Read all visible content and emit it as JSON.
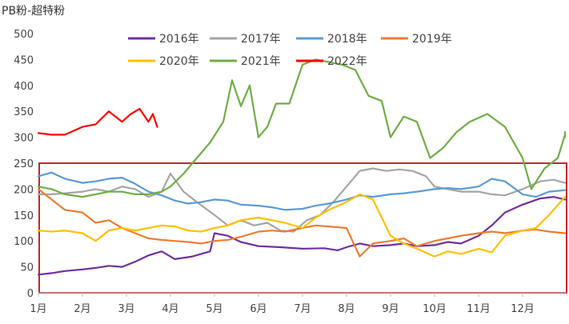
{
  "chart_data": {
    "type": "line",
    "unit_label": "PB粉-超特粉",
    "x_tick_labels": [
      "1月",
      "2月",
      "3月",
      "4月",
      "5月",
      "6月",
      "7月",
      "8月",
      "9月",
      "10月",
      "11月",
      "12月"
    ],
    "y_tick_labels": [
      "0",
      "50",
      "100",
      "150",
      "200",
      "250",
      "300",
      "350",
      "400",
      "450",
      "500"
    ],
    "ylim": [
      0,
      500
    ],
    "xlim_months": [
      1,
      13
    ],
    "grid": false,
    "legend_position": "top",
    "highlight_box": {
      "y_range": [
        0,
        250
      ],
      "color": "#c0282d"
    },
    "series": [
      {
        "name": "2016年",
        "color": "#7030a0",
        "points": [
          [
            1.0,
            35
          ],
          [
            1.3,
            38
          ],
          [
            1.6,
            42
          ],
          [
            2.0,
            45
          ],
          [
            2.3,
            48
          ],
          [
            2.6,
            52
          ],
          [
            2.9,
            50
          ],
          [
            3.2,
            60
          ],
          [
            3.5,
            72
          ],
          [
            3.8,
            80
          ],
          [
            4.1,
            65
          ],
          [
            4.5,
            70
          ],
          [
            4.9,
            80
          ],
          [
            5.0,
            115
          ],
          [
            5.3,
            110
          ],
          [
            5.6,
            98
          ],
          [
            6.0,
            90
          ],
          [
            6.5,
            88
          ],
          [
            7.0,
            85
          ],
          [
            7.5,
            86
          ],
          [
            7.8,
            82
          ],
          [
            8.0,
            88
          ],
          [
            8.3,
            95
          ],
          [
            8.6,
            90
          ],
          [
            9.0,
            92
          ],
          [
            9.3,
            95
          ],
          [
            9.6,
            90
          ],
          [
            10.0,
            92
          ],
          [
            10.3,
            98
          ],
          [
            10.6,
            95
          ],
          [
            11.0,
            110
          ],
          [
            11.3,
            130
          ],
          [
            11.6,
            155
          ],
          [
            12.0,
            170
          ],
          [
            12.4,
            182
          ],
          [
            12.7,
            185
          ],
          [
            13.0,
            180
          ]
        ]
      },
      {
        "name": "2017年",
        "color": "#a5a5a5",
        "points": [
          [
            1.0,
            190
          ],
          [
            1.3,
            190
          ],
          [
            1.6,
            192
          ],
          [
            2.0,
            195
          ],
          [
            2.3,
            200
          ],
          [
            2.6,
            195
          ],
          [
            2.9,
            205
          ],
          [
            3.2,
            200
          ],
          [
            3.5,
            185
          ],
          [
            3.8,
            195
          ],
          [
            4.0,
            230
          ],
          [
            4.3,
            195
          ],
          [
            4.6,
            175
          ],
          [
            5.0,
            150
          ],
          [
            5.3,
            130
          ],
          [
            5.6,
            140
          ],
          [
            5.9,
            130
          ],
          [
            6.2,
            135
          ],
          [
            6.5,
            120
          ],
          [
            6.8,
            118
          ],
          [
            7.1,
            140
          ],
          [
            7.4,
            150
          ],
          [
            7.7,
            175
          ],
          [
            8.0,
            205
          ],
          [
            8.3,
            235
          ],
          [
            8.6,
            240
          ],
          [
            8.9,
            235
          ],
          [
            9.2,
            238
          ],
          [
            9.5,
            235
          ],
          [
            9.8,
            225
          ],
          [
            10.0,
            205
          ],
          [
            10.3,
            200
          ],
          [
            10.6,
            195
          ],
          [
            11.0,
            195
          ],
          [
            11.3,
            190
          ],
          [
            11.6,
            188
          ],
          [
            12.0,
            200
          ],
          [
            12.4,
            215
          ],
          [
            12.7,
            218
          ],
          [
            13.0,
            212
          ]
        ]
      },
      {
        "name": "2018年",
        "color": "#5b9bd5",
        "points": [
          [
            1.0,
            225
          ],
          [
            1.3,
            232
          ],
          [
            1.6,
            220
          ],
          [
            2.0,
            212
          ],
          [
            2.3,
            215
          ],
          [
            2.6,
            220
          ],
          [
            2.9,
            222
          ],
          [
            3.2,
            210
          ],
          [
            3.5,
            195
          ],
          [
            3.8,
            188
          ],
          [
            4.1,
            178
          ],
          [
            4.4,
            172
          ],
          [
            4.7,
            175
          ],
          [
            5.0,
            180
          ],
          [
            5.3,
            178
          ],
          [
            5.6,
            170
          ],
          [
            6.0,
            168
          ],
          [
            6.3,
            165
          ],
          [
            6.6,
            160
          ],
          [
            7.0,
            162
          ],
          [
            7.3,
            168
          ],
          [
            7.6,
            172
          ],
          [
            8.0,
            180
          ],
          [
            8.3,
            188
          ],
          [
            8.6,
            185
          ],
          [
            9.0,
            190
          ],
          [
            9.3,
            192
          ],
          [
            9.6,
            195
          ],
          [
            10.0,
            200
          ],
          [
            10.3,
            202
          ],
          [
            10.6,
            200
          ],
          [
            11.0,
            205
          ],
          [
            11.3,
            220
          ],
          [
            11.6,
            215
          ],
          [
            12.0,
            190
          ],
          [
            12.3,
            185
          ],
          [
            12.6,
            195
          ],
          [
            13.0,
            198
          ]
        ]
      },
      {
        "name": "2019年",
        "color": "#ed7d31",
        "points": [
          [
            1.0,
            200
          ],
          [
            1.3,
            180
          ],
          [
            1.6,
            160
          ],
          [
            2.0,
            155
          ],
          [
            2.3,
            135
          ],
          [
            2.6,
            140
          ],
          [
            2.9,
            125
          ],
          [
            3.2,
            115
          ],
          [
            3.5,
            105
          ],
          [
            3.8,
            102
          ],
          [
            4.1,
            100
          ],
          [
            4.4,
            98
          ],
          [
            4.7,
            95
          ],
          [
            5.0,
            100
          ],
          [
            5.3,
            102
          ],
          [
            5.6,
            108
          ],
          [
            6.0,
            118
          ],
          [
            6.3,
            120
          ],
          [
            6.6,
            118
          ],
          [
            7.0,
            125
          ],
          [
            7.3,
            130
          ],
          [
            7.6,
            128
          ],
          [
            8.0,
            125
          ],
          [
            8.3,
            70
          ],
          [
            8.6,
            95
          ],
          [
            9.0,
            100
          ],
          [
            9.3,
            105
          ],
          [
            9.6,
            90
          ],
          [
            10.0,
            100
          ],
          [
            10.3,
            105
          ],
          [
            10.6,
            110
          ],
          [
            11.0,
            115
          ],
          [
            11.3,
            118
          ],
          [
            11.6,
            115
          ],
          [
            12.0,
            120
          ],
          [
            12.3,
            122
          ],
          [
            12.6,
            118
          ],
          [
            13.0,
            115
          ]
        ]
      },
      {
        "name": "2020年",
        "color": "#ffc000",
        "points": [
          [
            1.0,
            120
          ],
          [
            1.3,
            118
          ],
          [
            1.6,
            120
          ],
          [
            2.0,
            115
          ],
          [
            2.3,
            100
          ],
          [
            2.6,
            120
          ],
          [
            2.9,
            125
          ],
          [
            3.2,
            120
          ],
          [
            3.5,
            125
          ],
          [
            3.8,
            130
          ],
          [
            4.1,
            128
          ],
          [
            4.4,
            120
          ],
          [
            4.7,
            118
          ],
          [
            5.0,
            125
          ],
          [
            5.3,
            130
          ],
          [
            5.6,
            140
          ],
          [
            6.0,
            145
          ],
          [
            6.3,
            140
          ],
          [
            6.6,
            135
          ],
          [
            7.0,
            125
          ],
          [
            7.3,
            145
          ],
          [
            7.6,
            160
          ],
          [
            8.0,
            175
          ],
          [
            8.3,
            190
          ],
          [
            8.6,
            180
          ],
          [
            9.0,
            110
          ],
          [
            9.3,
            95
          ],
          [
            9.6,
            85
          ],
          [
            10.0,
            70
          ],
          [
            10.3,
            80
          ],
          [
            10.6,
            75
          ],
          [
            11.0,
            85
          ],
          [
            11.3,
            78
          ],
          [
            11.6,
            110
          ],
          [
            12.0,
            120
          ],
          [
            12.3,
            125
          ],
          [
            12.6,
            150
          ],
          [
            13.0,
            185
          ]
        ]
      },
      {
        "name": "2021年",
        "color": "#70ad47",
        "points": [
          [
            1.0,
            205
          ],
          [
            1.3,
            200
          ],
          [
            1.6,
            190
          ],
          [
            2.0,
            185
          ],
          [
            2.3,
            190
          ],
          [
            2.6,
            195
          ],
          [
            2.9,
            195
          ],
          [
            3.2,
            190
          ],
          [
            3.5,
            190
          ],
          [
            3.8,
            195
          ],
          [
            4.0,
            205
          ],
          [
            4.3,
            230
          ],
          [
            4.6,
            260
          ],
          [
            4.9,
            290
          ],
          [
            5.2,
            330
          ],
          [
            5.4,
            410
          ],
          [
            5.6,
            360
          ],
          [
            5.8,
            400
          ],
          [
            6.0,
            300
          ],
          [
            6.2,
            320
          ],
          [
            6.4,
            365
          ],
          [
            6.7,
            365
          ],
          [
            7.0,
            440
          ],
          [
            7.3,
            450
          ],
          [
            7.6,
            445
          ],
          [
            7.9,
            440
          ],
          [
            8.2,
            430
          ],
          [
            8.5,
            380
          ],
          [
            8.8,
            370
          ],
          [
            9.0,
            300
          ],
          [
            9.3,
            340
          ],
          [
            9.6,
            330
          ],
          [
            9.9,
            260
          ],
          [
            10.2,
            280
          ],
          [
            10.5,
            310
          ],
          [
            10.8,
            330
          ],
          [
            11.2,
            345
          ],
          [
            11.6,
            320
          ],
          [
            12.0,
            260
          ],
          [
            12.2,
            200
          ],
          [
            12.5,
            240
          ],
          [
            12.8,
            260
          ],
          [
            13.2,
            305
          ],
          [
            13.5,
            310
          ],
          [
            13.8,
            300
          ]
        ]
      },
      {
        "name": "2022年",
        "color": "#ff0000",
        "points": [
          [
            1.0,
            308
          ],
          [
            1.3,
            305
          ],
          [
            1.6,
            305
          ],
          [
            2.0,
            320
          ],
          [
            2.3,
            325
          ],
          [
            2.6,
            350
          ],
          [
            2.9,
            330
          ],
          [
            3.1,
            345
          ],
          [
            3.3,
            355
          ],
          [
            3.5,
            330
          ],
          [
            3.6,
            345
          ],
          [
            3.7,
            320
          ]
        ]
      }
    ]
  }
}
